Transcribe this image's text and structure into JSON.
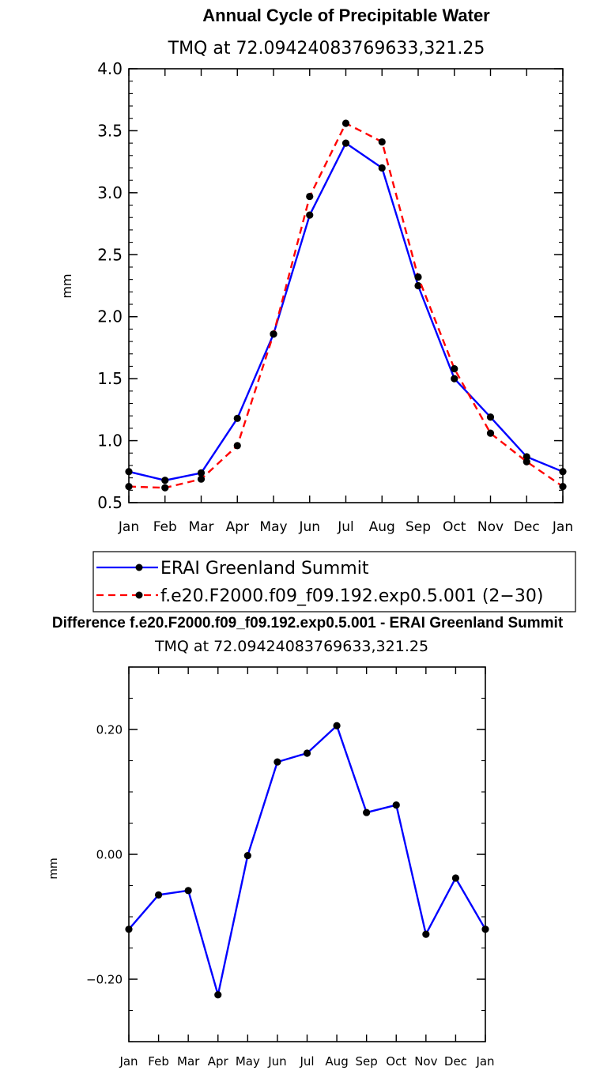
{
  "colors": {
    "erai": "#0000ff",
    "model": "#ff0000",
    "diff": "#0000ff",
    "marker": "#000000"
  },
  "chart_data": [
    {
      "type": "line",
      "title": "Annual Cycle of Precipitable Water",
      "subtitle": "TMQ at 72.09424083769633,321.25",
      "ylabel": "mm",
      "xlabel": "",
      "categories": [
        "Jan",
        "Feb",
        "Mar",
        "Apr",
        "May",
        "Jun",
        "Jul",
        "Aug",
        "Sep",
        "Oct",
        "Nov",
        "Dec",
        "Jan"
      ],
      "ylim": [
        0.5,
        4.0
      ],
      "yticks": [
        0.5,
        1.0,
        1.5,
        2.0,
        2.5,
        3.0,
        3.5,
        4.0
      ],
      "ytick_labels": [
        "0.5",
        "1.0",
        "1.5",
        "2.0",
        "2.5",
        "3.0",
        "3.5",
        "4.0"
      ],
      "series": [
        {
          "name": "ERAI Greenland Summit",
          "style": "solid",
          "values": [
            0.75,
            0.68,
            0.74,
            1.18,
            1.86,
            2.82,
            3.4,
            3.2,
            2.25,
            1.5,
            1.19,
            0.87,
            0.75
          ]
        },
        {
          "name": "f.e20.F2000.f09_f09.192.exp0.5.001 (2−30)",
          "style": "dashed",
          "values": [
            0.63,
            0.62,
            0.69,
            0.96,
            1.86,
            2.97,
            3.56,
            3.41,
            2.32,
            1.58,
            1.06,
            0.83,
            0.63
          ]
        }
      ],
      "legend": "bottom"
    },
    {
      "type": "line",
      "title": "Difference f.e20.F2000.f09_f09.192.exp0.5.001 - ERAI Greenland Summit",
      "subtitle": "TMQ at 72.09424083769633,321.25",
      "ylabel": "mm",
      "xlabel": "",
      "categories": [
        "Jan",
        "Feb",
        "Mar",
        "Apr",
        "May",
        "Jun",
        "Jul",
        "Aug",
        "Sep",
        "Oct",
        "Nov",
        "Dec",
        "Jan"
      ],
      "ylim": [
        -0.3,
        0.3
      ],
      "yticks": [
        -0.2,
        0.0,
        0.2
      ],
      "ytick_labels": [
        "−0.20",
        "0.00",
        "0.20"
      ],
      "series": [
        {
          "name": "Difference",
          "style": "solid",
          "values": [
            -0.12,
            -0.065,
            -0.058,
            -0.225,
            -0.002,
            0.148,
            0.162,
            0.206,
            0.067,
            0.079,
            -0.128,
            -0.038,
            -0.12
          ]
        }
      ]
    }
  ]
}
